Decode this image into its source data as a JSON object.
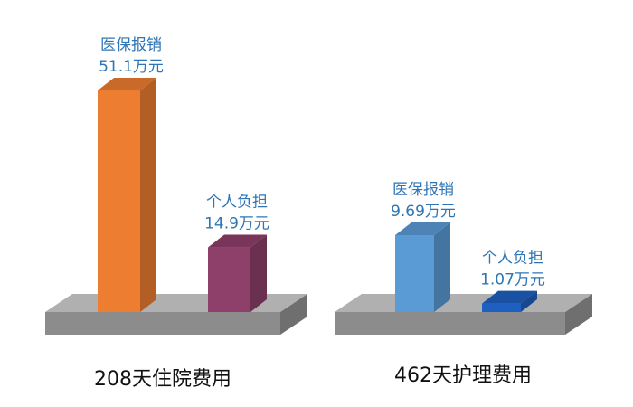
{
  "chart_data": [
    {
      "type": "bar",
      "title": "208天住院费用",
      "categories": [
        "医保报销",
        "个人负担"
      ],
      "values": [
        51.1,
        14.9
      ],
      "value_labels": [
        "51.1万元",
        "14.9万元"
      ],
      "colors": [
        "#ed7d31",
        "#8e3f6a"
      ]
    },
    {
      "type": "bar",
      "title": "462天护理费用",
      "categories": [
        "医保报销",
        "个人负担"
      ],
      "values": [
        9.69,
        1.07
      ],
      "value_labels": [
        "9.69万元",
        "1.07万元"
      ],
      "colors": [
        "#5b9bd5",
        "#1f5fbf"
      ]
    }
  ]
}
